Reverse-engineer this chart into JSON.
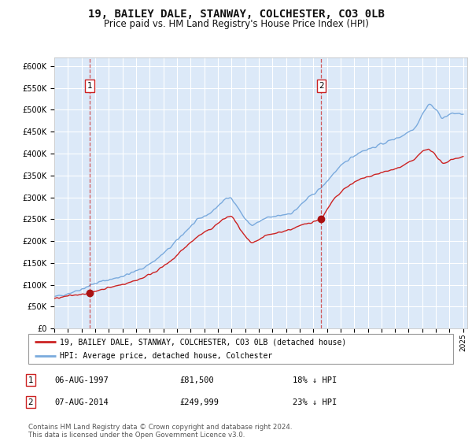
{
  "title": "19, BAILEY DALE, STANWAY, COLCHESTER, CO3 0LB",
  "subtitle": "Price paid vs. HM Land Registry's House Price Index (HPI)",
  "title_fontsize": 10,
  "subtitle_fontsize": 8.5,
  "ylim": [
    0,
    620000
  ],
  "yticks": [
    0,
    50000,
    100000,
    150000,
    200000,
    250000,
    300000,
    350000,
    400000,
    450000,
    500000,
    550000,
    600000
  ],
  "ytick_labels": [
    "£0",
    "£50K",
    "£100K",
    "£150K",
    "£200K",
    "£250K",
    "£300K",
    "£350K",
    "£400K",
    "£450K",
    "£500K",
    "£550K",
    "£600K"
  ],
  "plot_bg_color": "#dce9f8",
  "grid_color": "#ffffff",
  "hpi_color": "#7aaadd",
  "price_color": "#cc2222",
  "sale1_date": 1997.59,
  "sale1_price": 81500,
  "sale2_date": 2014.59,
  "sale2_price": 249999,
  "vline_color": "#cc3333",
  "marker_color": "#aa1111",
  "legend_label1": "19, BAILEY DALE, STANWAY, COLCHESTER, CO3 0LB (detached house)",
  "legend_label2": "HPI: Average price, detached house, Colchester",
  "table_row1": [
    "1",
    "06-AUG-1997",
    "£81,500",
    "18% ↓ HPI"
  ],
  "table_row2": [
    "2",
    "07-AUG-2014",
    "£249,999",
    "23% ↓ HPI"
  ],
  "footer": "Contains HM Land Registry data © Crown copyright and database right 2024.\nThis data is licensed under the Open Government Licence v3.0.",
  "xstart": 1995.0,
  "xend": 2025.3
}
